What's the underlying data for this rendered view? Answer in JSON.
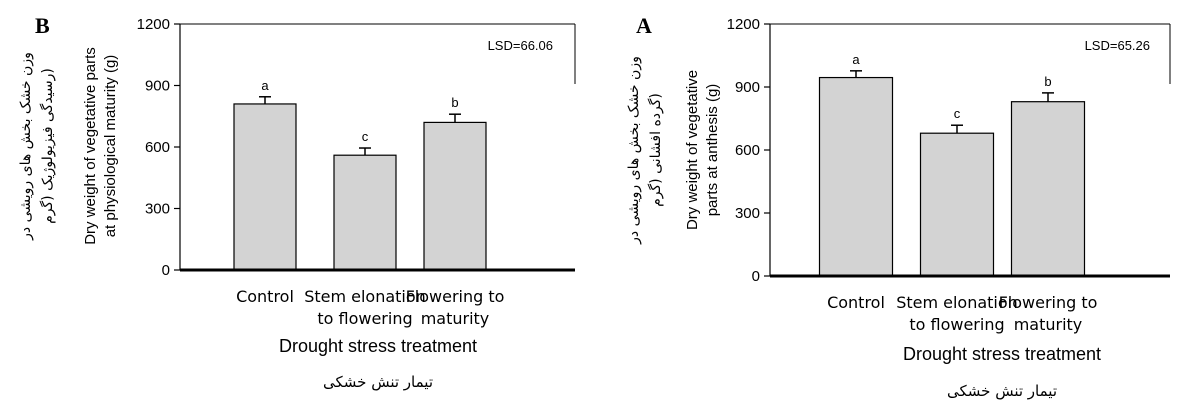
{
  "chart_data": [
    {
      "panel": "B",
      "type": "bar",
      "categories": [
        [
          "Control"
        ],
        [
          "Stem elonation",
          "to flowering"
        ],
        [
          "Flowering to",
          "maturity"
        ]
      ],
      "values": [
        810,
        560,
        720
      ],
      "errors": [
        35,
        35,
        40
      ],
      "letters": [
        "a",
        "c",
        "b"
      ],
      "annotation": "LSD=66.06",
      "ylabel": [
        "Dry weight of vegetative parts",
        "at physiological maturity (g)"
      ],
      "ylabel_fa": [
        "وزن خشک بخش های رویشی در",
        "(رسیدگی فیزیولوژیک (گرم"
      ],
      "xlabel": "Drought stress treatment",
      "xlabel_fa": "تیمار تنش خشکی",
      "yticks": [
        0,
        300,
        600,
        900,
        1200
      ],
      "ylim": [
        0,
        1200
      ],
      "bar_color": "#d3d3d3"
    },
    {
      "panel": "A",
      "type": "bar",
      "categories": [
        [
          "Control"
        ],
        [
          "Stem elonation",
          "to flowering"
        ],
        [
          "Flowering to",
          "maturity"
        ]
      ],
      "values": [
        945,
        680,
        830
      ],
      "errors": [
        32,
        38,
        42
      ],
      "letters": [
        "a",
        "c",
        "b"
      ],
      "annotation": "LSD=65.26",
      "ylabel": [
        "Dry weight of vegetative",
        "parts at anthesis (g)"
      ],
      "ylabel_fa": [
        "وزن خشک بخش های رویشی در",
        "(گرده افشانی (گرم"
      ],
      "xlabel": "Drought stress treatment",
      "xlabel_fa": "تیمار تنش خشکی",
      "yticks": [
        0,
        300,
        600,
        900,
        1200
      ],
      "ylim": [
        0,
        1200
      ],
      "bar_color": "#d3d3d3"
    }
  ]
}
